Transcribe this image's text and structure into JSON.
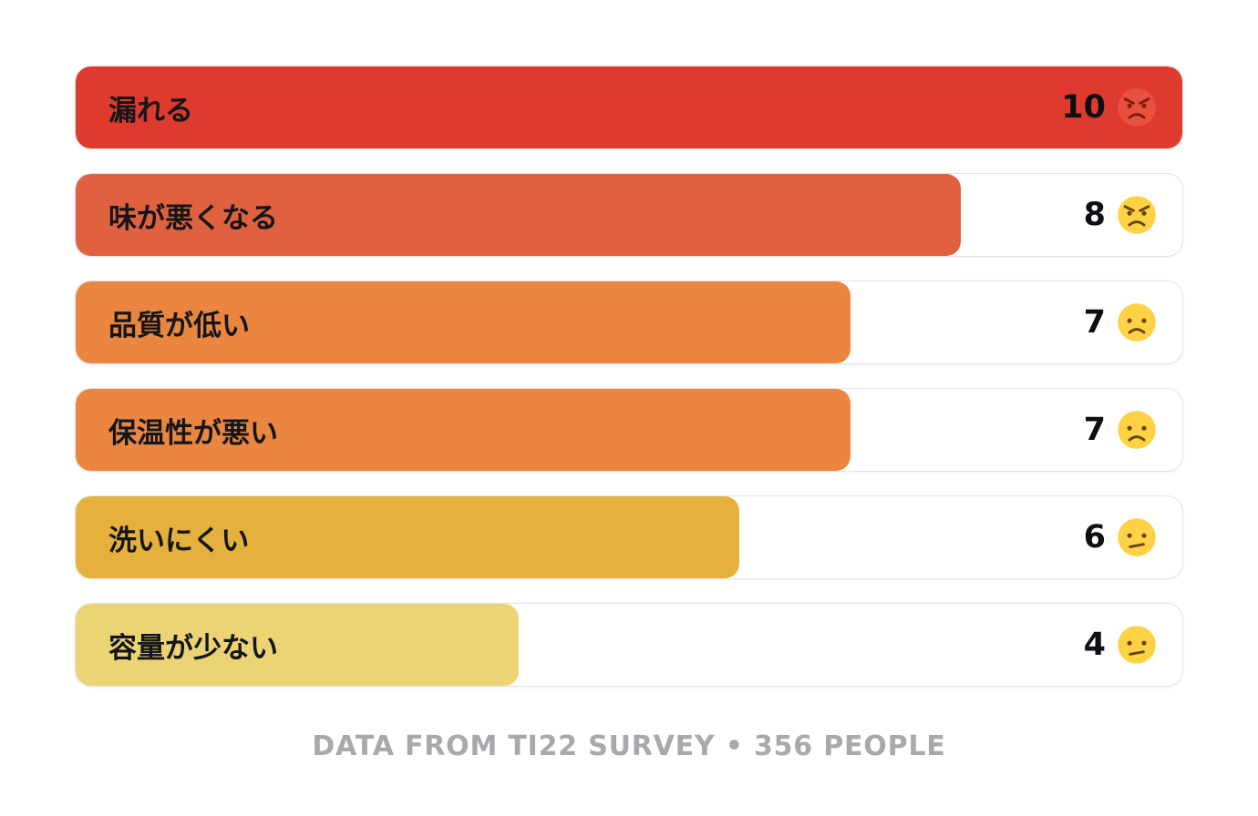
{
  "chart_data": {
    "type": "bar",
    "orientation": "horizontal",
    "title": "",
    "xlabel": "",
    "ylabel": "",
    "xlim": [
      0,
      10
    ],
    "max": 10,
    "grid": false,
    "legend": false,
    "categories": [
      "漏れる",
      "味が悪くなる",
      "品質が低い",
      "保温性が悪い",
      "洗いにくい",
      "容量が少ない"
    ],
    "values": [
      10,
      8,
      7,
      7,
      6,
      4
    ],
    "rows": [
      {
        "label": "漏れる",
        "value": 10,
        "emoji": "pouting-face",
        "color": "#de3a2d"
      },
      {
        "label": "味が悪くなる",
        "value": 8,
        "emoji": "angry-face",
        "color": "#e0613f"
      },
      {
        "label": "品質が低い",
        "value": 7,
        "emoji": "frowning-face",
        "color": "#ea8640"
      },
      {
        "label": "保温性が悪い",
        "value": 7,
        "emoji": "frowning-face",
        "color": "#ea8640"
      },
      {
        "label": "洗いにくい",
        "value": 6,
        "emoji": "confused-face",
        "color": "#e5b13d"
      },
      {
        "label": "容量が少ない",
        "value": 4,
        "emoji": "confused-face",
        "color": "#ecd374"
      }
    ],
    "emoji_face_colors": {
      "pouting-face": "#e8503f",
      "angry-face": "#ffd245",
      "frowning-face": "#ffd245",
      "confused-face": "#ffd245"
    }
  },
  "footer": {
    "text": "DATA FROM TI22 SURVEY • 356 PEOPLE"
  }
}
